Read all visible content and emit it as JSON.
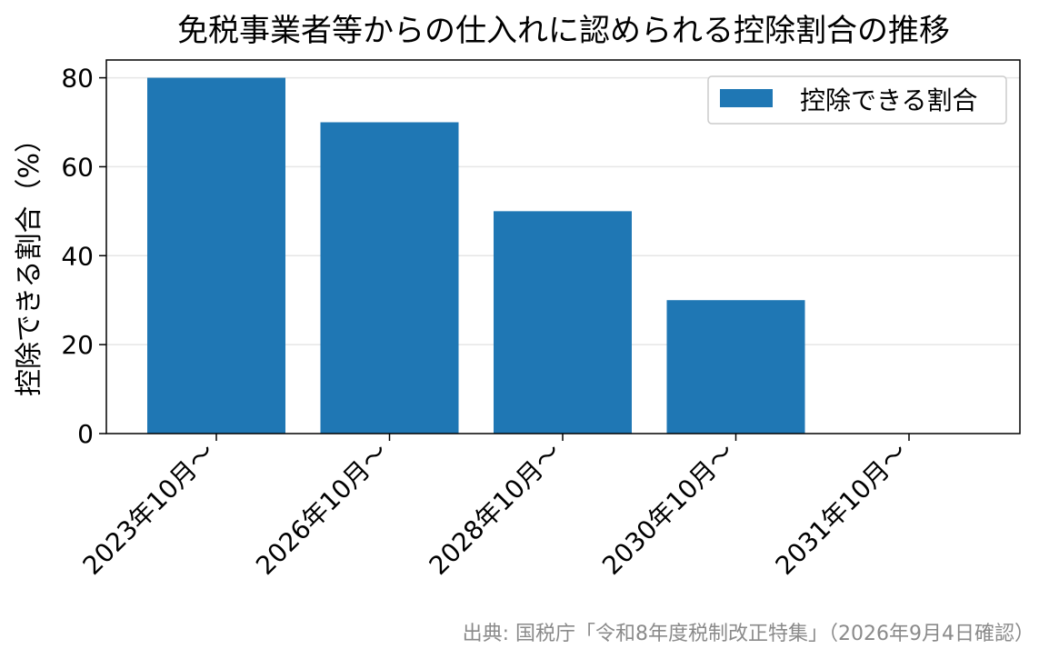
{
  "chart_data": {
    "type": "bar",
    "title": "免税事業者等からの仕入れに認められる控除割合の推移",
    "ylabel": "控除できる割合（%）",
    "xlabel": "",
    "categories": [
      "2023年10月〜",
      "2026年10月〜",
      "2028年10月〜",
      "2030年10月〜",
      "2031年10月〜"
    ],
    "series": [
      {
        "name": "控除できる割合",
        "values": [
          80,
          70,
          50,
          30,
          0
        ]
      }
    ],
    "ylim": [
      0,
      84
    ],
    "yticks": [
      0,
      20,
      40,
      60,
      80
    ],
    "grid": "horizontal",
    "legend_position": "top-right",
    "colors": {
      "bar": "#1f77b4",
      "grid": "#e6e6e6",
      "axis": "#000000",
      "source_text": "#8a8a8a"
    },
    "source": "出典: 国税庁「令和8年度税制改正特集」（2026年9月4日確認）"
  }
}
